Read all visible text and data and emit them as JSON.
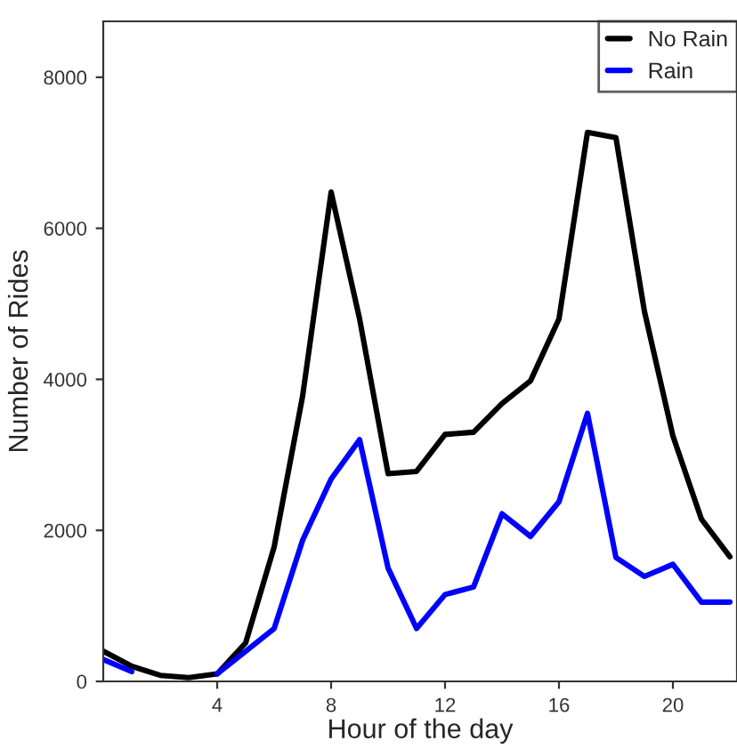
{
  "chart_data": {
    "type": "line",
    "xlabel": "Hour of the day",
    "ylabel": "Number of Rides",
    "x": [
      0,
      1,
      2,
      3,
      4,
      5,
      6,
      7,
      8,
      9,
      10,
      11,
      12,
      13,
      14,
      15,
      16,
      17,
      18,
      19,
      20,
      21,
      22
    ],
    "series": [
      {
        "name": "No Rain",
        "color": "#000000",
        "values": [
          400,
          200,
          80,
          50,
          100,
          510,
          1780,
          3780,
          6480,
          4800,
          2750,
          2780,
          3270,
          3300,
          3680,
          3980,
          4800,
          7270,
          7200,
          4900,
          3250,
          2150,
          1650
        ]
      },
      {
        "name": "Rain",
        "color": "#0000ff",
        "values": [
          290,
          130,
          null,
          null,
          100,
          400,
          700,
          1870,
          2680,
          3200,
          1500,
          700,
          1150,
          1250,
          2220,
          1920,
          2380,
          3550,
          1640,
          1390,
          1550,
          1050,
          1050
        ]
      }
    ],
    "xlim": [
      0,
      22.25
    ],
    "xticks": [
      4,
      8,
      12,
      16,
      20
    ],
    "ylim": [
      0,
      8740
    ],
    "yticks": [
      0,
      2000,
      4000,
      6000,
      8000
    ],
    "grid": false,
    "legend": "top right",
    "line_style": "solid",
    "marker": "none"
  }
}
